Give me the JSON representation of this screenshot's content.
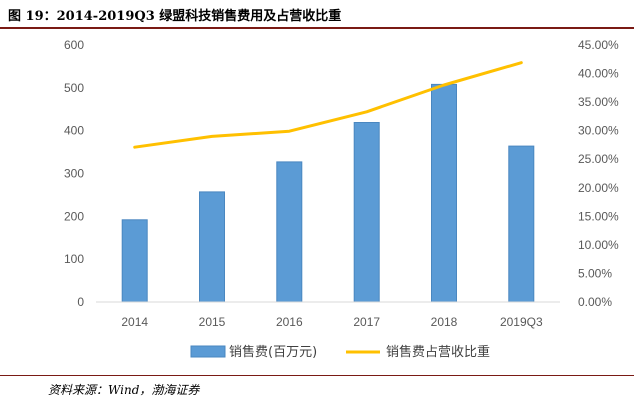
{
  "figure": {
    "title": "图 19：2014-2019Q3 绿盟科技销售费用及占营收比重",
    "source": "资料来源：Wind，渤海证券"
  },
  "chart_data": {
    "type": "bar+line",
    "categories": [
      "2014",
      "2015",
      "2016",
      "2017",
      "2018",
      "2019Q3"
    ],
    "series": [
      {
        "name": "销售费(百万元)",
        "type": "bar",
        "axis": "left",
        "color": "#5B9BD5",
        "values": [
          192,
          257,
          327,
          419,
          508,
          364
        ]
      },
      {
        "name": "销售费占营收比重",
        "type": "line",
        "axis": "right",
        "color": "#FFC000",
        "values": [
          0.271,
          0.29,
          0.299,
          0.333,
          0.38,
          0.419
        ]
      }
    ],
    "y_left": {
      "min": 0,
      "max": 600,
      "step": 100,
      "ticks": [
        "0",
        "100",
        "200",
        "300",
        "400",
        "500",
        "600"
      ]
    },
    "y_right": {
      "min": 0,
      "max": 0.45,
      "step": 0.05,
      "ticks": [
        "0.00%",
        "5.00%",
        "10.00%",
        "15.00%",
        "20.00%",
        "25.00%",
        "30.00%",
        "35.00%",
        "40.00%",
        "45.00%"
      ]
    },
    "grid": false,
    "legend_position": "bottom"
  }
}
